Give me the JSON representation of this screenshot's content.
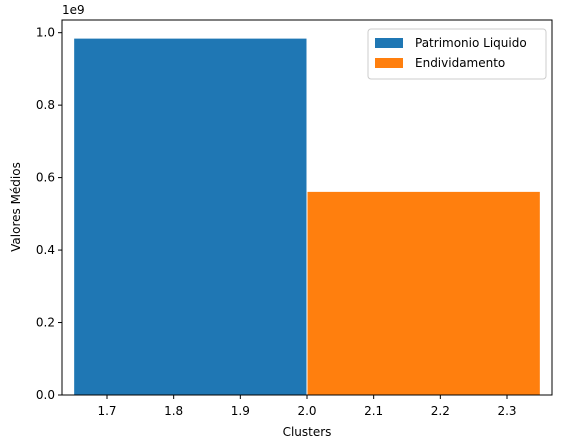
{
  "chart_data": {
    "type": "bar",
    "title": "",
    "xlabel": "Clusters",
    "ylabel": "Valores Médios",
    "y_offset_text": "1e9",
    "y_scale_factor": 1000000000,
    "xlim": [
      1.6325,
      2.3675
    ],
    "ylim": [
      0,
      1035000000
    ],
    "x_ticks": [
      1.7,
      1.8,
      1.9,
      2.0,
      2.1,
      2.2,
      2.3
    ],
    "x_tick_labels": [
      "1.7",
      "1.8",
      "1.9",
      "2.0",
      "2.1",
      "2.2",
      "2.3"
    ],
    "y_ticks": [
      0,
      200000000,
      400000000,
      600000000,
      800000000,
      1000000000
    ],
    "y_tick_labels": [
      "0.0",
      "0.2",
      "0.4",
      "0.6",
      "0.8",
      "1.0"
    ],
    "grid": false,
    "legend_position": "top-right",
    "series": [
      {
        "name": "Patrimonio Liquido",
        "color": "#1f77b4",
        "x_start": 1.65,
        "x_end": 2.0,
        "value": 985000000
      },
      {
        "name": "Endividamento",
        "color": "#ff7f0e",
        "x_start": 2.0,
        "x_end": 2.35,
        "value": 562000000
      }
    ]
  }
}
